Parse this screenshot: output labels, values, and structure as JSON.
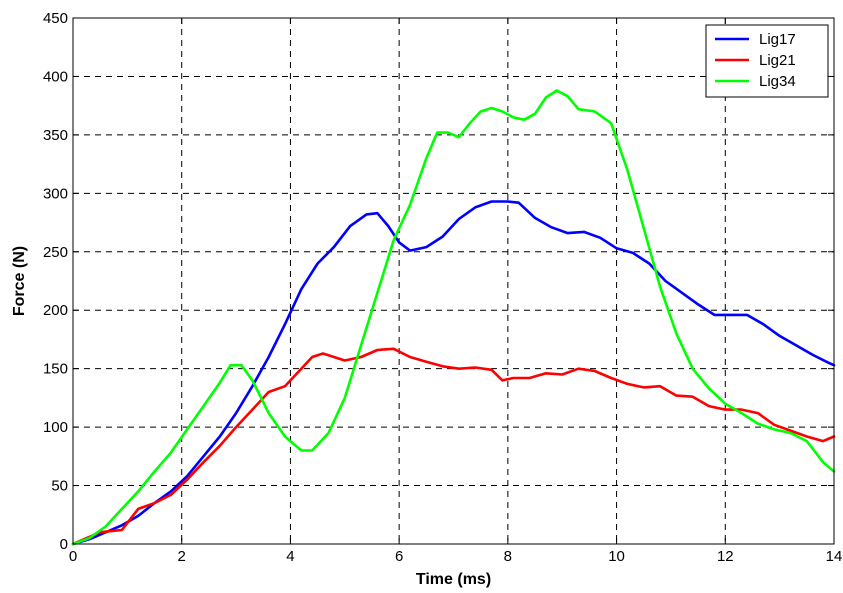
{
  "chart_data": {
    "type": "line",
    "xlabel": "Time (ms)",
    "ylabel": "Force (N)",
    "xlim": [
      0,
      14
    ],
    "ylim": [
      0,
      450
    ],
    "xticks": [
      0,
      2,
      4,
      6,
      8,
      10,
      12,
      14
    ],
    "yticks": [
      0,
      50,
      100,
      150,
      200,
      250,
      300,
      350,
      400,
      450
    ],
    "grid": true,
    "legend_position": "top-right",
    "series": [
      {
        "name": "Lig17",
        "color": "#0000ff",
        "x": [
          0,
          0.3,
          0.6,
          0.9,
          1.2,
          1.5,
          1.8,
          2.1,
          2.4,
          2.7,
          3.0,
          3.3,
          3.6,
          3.9,
          4.2,
          4.5,
          4.8,
          5.1,
          5.4,
          5.6,
          5.8,
          6.0,
          6.2,
          6.5,
          6.8,
          7.1,
          7.4,
          7.7,
          8.0,
          8.2,
          8.5,
          8.8,
          9.1,
          9.4,
          9.7,
          10.0,
          10.3,
          10.6,
          10.9,
          11.2,
          11.5,
          11.8,
          12.1,
          12.4,
          12.7,
          13.0,
          13.3,
          13.6,
          13.9,
          14.0
        ],
        "values": [
          0,
          4,
          10,
          16,
          24,
          35,
          45,
          58,
          75,
          92,
          112,
          135,
          160,
          188,
          218,
          240,
          254,
          272,
          282,
          283,
          272,
          258,
          251,
          254,
          263,
          278,
          288,
          293,
          293,
          292,
          279,
          271,
          266,
          267,
          262,
          253,
          249,
          240,
          225,
          215,
          205,
          196,
          196,
          196,
          188,
          178,
          170,
          162,
          155,
          153
        ]
      },
      {
        "name": "Lig21",
        "color": "#ff0000",
        "x": [
          0,
          0.3,
          0.5,
          0.7,
          0.9,
          1.2,
          1.5,
          1.8,
          2.1,
          2.4,
          2.7,
          3.0,
          3.3,
          3.6,
          3.9,
          4.2,
          4.4,
          4.6,
          4.8,
          5.0,
          5.3,
          5.6,
          5.9,
          6.2,
          6.5,
          6.8,
          7.1,
          7.4,
          7.7,
          7.9,
          8.1,
          8.4,
          8.7,
          9.0,
          9.3,
          9.6,
          9.9,
          10.2,
          10.5,
          10.8,
          11.1,
          11.4,
          11.7,
          12.0,
          12.3,
          12.6,
          12.9,
          13.2,
          13.5,
          13.8,
          14.0
        ],
        "values": [
          0,
          6,
          10,
          11,
          12,
          30,
          35,
          42,
          55,
          70,
          84,
          100,
          115,
          130,
          135,
          150,
          160,
          163,
          160,
          157,
          160,
          166,
          167,
          160,
          156,
          152,
          150,
          151,
          149,
          140,
          142,
          142,
          146,
          145,
          150,
          148,
          142,
          137,
          134,
          135,
          127,
          126,
          118,
          115,
          115,
          112,
          102,
          97,
          92,
          88,
          92
        ]
      },
      {
        "name": "Lig34",
        "color": "#00ff00",
        "x": [
          0,
          0.3,
          0.6,
          0.9,
          1.2,
          1.5,
          1.8,
          2.1,
          2.4,
          2.7,
          2.9,
          3.1,
          3.3,
          3.6,
          3.9,
          4.2,
          4.4,
          4.7,
          5.0,
          5.3,
          5.6,
          5.9,
          6.2,
          6.5,
          6.7,
          6.9,
          7.1,
          7.3,
          7.5,
          7.7,
          7.9,
          8.1,
          8.3,
          8.5,
          8.7,
          8.9,
          9.1,
          9.3,
          9.6,
          9.9,
          10.2,
          10.5,
          10.8,
          11.1,
          11.4,
          11.7,
          12.0,
          12.3,
          12.6,
          12.9,
          13.2,
          13.5,
          13.8,
          14.0
        ],
        "values": [
          0,
          5,
          15,
          30,
          45,
          62,
          78,
          98,
          118,
          138,
          153,
          153,
          140,
          112,
          92,
          80,
          80,
          95,
          125,
          170,
          215,
          260,
          290,
          330,
          352,
          352,
          348,
          360,
          370,
          373,
          370,
          365,
          363,
          368,
          382,
          388,
          383,
          372,
          370,
          360,
          320,
          270,
          220,
          180,
          150,
          133,
          120,
          112,
          103,
          98,
          95,
          88,
          70,
          62
        ]
      }
    ]
  }
}
